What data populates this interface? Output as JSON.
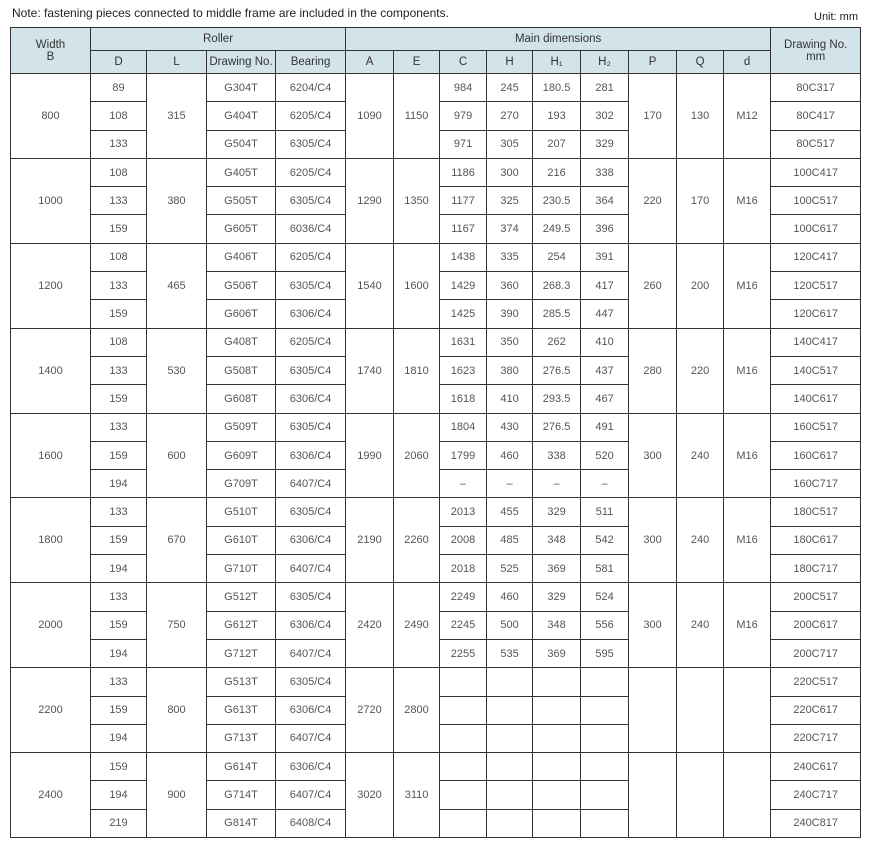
{
  "note": "Note: fastening pieces connected to middle frame are included in the components.",
  "unit": "Unit: mm",
  "headers": {
    "width": "Width",
    "width_sub": "B",
    "roller": "Roller",
    "main_dimensions": "Main dimensions",
    "drawing_no_mm": "Drawing No.",
    "drawing_no_mm_sub": "mm",
    "columns": [
      "D",
      "L",
      "Drawing No.",
      "Bearing",
      "A",
      "E",
      "C",
      "H",
      "H₁",
      "H₂",
      "P",
      "Q",
      "d"
    ]
  },
  "header_color": "#d3e3ea",
  "groups": [
    {
      "width": "800",
      "L": "315",
      "A": "1090",
      "E": "1150",
      "P": "170",
      "Q": "130",
      "d": "M12",
      "rows": [
        {
          "D": "89",
          "drawing_no": "G304T",
          "bearing": "6204/C4",
          "C": "984",
          "H": "245",
          "H1": "180.5",
          "H2": "281",
          "drawing_no_mm": "80C317"
        },
        {
          "D": "108",
          "drawing_no": "G404T",
          "bearing": "6205/C4",
          "C": "979",
          "H": "270",
          "H1": "193",
          "H2": "302",
          "drawing_no_mm": "80C417"
        },
        {
          "D": "133",
          "drawing_no": "G504T",
          "bearing": "6305/C4",
          "C": "971",
          "H": "305",
          "H1": "207",
          "H2": "329",
          "drawing_no_mm": "80C517"
        }
      ]
    },
    {
      "width": "1000",
      "L": "380",
      "A": "1290",
      "E": "1350",
      "P": "220",
      "Q": "170",
      "d": "M16",
      "rows": [
        {
          "D": "108",
          "drawing_no": "G405T",
          "bearing": "6205/C4",
          "C": "1186",
          "H": "300",
          "H1": "216",
          "H2": "338",
          "drawing_no_mm": "100C417"
        },
        {
          "D": "133",
          "drawing_no": "G505T",
          "bearing": "6305/C4",
          "C": "1177",
          "H": "325",
          "H1": "230.5",
          "H2": "364",
          "drawing_no_mm": "100C517"
        },
        {
          "D": "159",
          "drawing_no": "G605T",
          "bearing": "6036/C4",
          "C": "1167",
          "H": "374",
          "H1": "249.5",
          "H2": "396",
          "drawing_no_mm": "100C617"
        }
      ]
    },
    {
      "width": "1200",
      "L": "465",
      "A": "1540",
      "E": "1600",
      "P": "260",
      "Q": "200",
      "d": "M16",
      "rows": [
        {
          "D": "108",
          "drawing_no": "G406T",
          "bearing": "6205/C4",
          "C": "1438",
          "H": "335",
          "H1": "254",
          "H2": "391",
          "drawing_no_mm": "120C417"
        },
        {
          "D": "133",
          "drawing_no": "G506T",
          "bearing": "6305/C4",
          "C": "1429",
          "H": "360",
          "H1": "268.3",
          "H2": "417",
          "drawing_no_mm": "120C517"
        },
        {
          "D": "159",
          "drawing_no": "G606T",
          "bearing": "6306/C4",
          "C": "1425",
          "H": "390",
          "H1": "285.5",
          "H2": "447",
          "drawing_no_mm": "120C617"
        }
      ]
    },
    {
      "width": "1400",
      "L": "530",
      "A": "1740",
      "E": "1810",
      "P": "280",
      "Q": "220",
      "d": "M16",
      "rows": [
        {
          "D": "108",
          "drawing_no": "G408T",
          "bearing": "6205/C4",
          "C": "1631",
          "H": "350",
          "H1": "262",
          "H2": "410",
          "drawing_no_mm": "140C417"
        },
        {
          "D": "133",
          "drawing_no": "G508T",
          "bearing": "6305/C4",
          "C": "1623",
          "H": "380",
          "H1": "276.5",
          "H2": "437",
          "drawing_no_mm": "140C517"
        },
        {
          "D": "159",
          "drawing_no": "G608T",
          "bearing": "6306/C4",
          "C": "1618",
          "H": "410",
          "H1": "293.5",
          "H2": "467",
          "drawing_no_mm": "140C617"
        }
      ]
    },
    {
      "width": "1600",
      "L": "600",
      "A": "1990",
      "E": "2060",
      "P": "300",
      "Q": "240",
      "d": "M16",
      "rows": [
        {
          "D": "133",
          "drawing_no": "G509T",
          "bearing": "6305/C4",
          "C": "1804",
          "H": "430",
          "H1": "276.5",
          "H2": "491",
          "drawing_no_mm": "160C517"
        },
        {
          "D": "159",
          "drawing_no": "G609T",
          "bearing": "6306/C4",
          "C": "1799",
          "H": "460",
          "H1": "338",
          "H2": "520",
          "drawing_no_mm": "160C617"
        },
        {
          "D": "194",
          "drawing_no": "G709T",
          "bearing": "6407/C4",
          "C": "–",
          "H": "–",
          "H1": "–",
          "H2": "–",
          "drawing_no_mm": "160C717"
        }
      ]
    },
    {
      "width": "1800",
      "L": "670",
      "A": "2190",
      "E": "2260",
      "P": "300",
      "Q": "240",
      "d": "M16",
      "rows": [
        {
          "D": "133",
          "drawing_no": "G510T",
          "bearing": "6305/C4",
          "C": "2013",
          "H": "455",
          "H1": "329",
          "H2": "511",
          "drawing_no_mm": "180C517"
        },
        {
          "D": "159",
          "drawing_no": "G610T",
          "bearing": "6306/C4",
          "C": "2008",
          "H": "485",
          "H1": "348",
          "H2": "542",
          "drawing_no_mm": "180C617"
        },
        {
          "D": "194",
          "drawing_no": "G710T",
          "bearing": "6407/C4",
          "C": "2018",
          "H": "525",
          "H1": "369",
          "H2": "581",
          "drawing_no_mm": "180C717"
        }
      ]
    },
    {
      "width": "2000",
      "L": "750",
      "A": "2420",
      "E": "2490",
      "P": "300",
      "Q": "240",
      "d": "M16",
      "rows": [
        {
          "D": "133",
          "drawing_no": "G512T",
          "bearing": "6305/C4",
          "C": "2249",
          "H": "460",
          "H1": "329",
          "H2": "524",
          "drawing_no_mm": "200C517"
        },
        {
          "D": "159",
          "drawing_no": "G612T",
          "bearing": "6306/C4",
          "C": "2245",
          "H": "500",
          "H1": "348",
          "H2": "556",
          "drawing_no_mm": "200C617"
        },
        {
          "D": "194",
          "drawing_no": "G712T",
          "bearing": "6407/C4",
          "C": "2255",
          "H": "535",
          "H1": "369",
          "H2": "595",
          "drawing_no_mm": "200C717"
        }
      ]
    },
    {
      "width": "2200",
      "L": "800",
      "A": "2720",
      "E": "2800",
      "P": "",
      "Q": "",
      "d": "",
      "rows": [
        {
          "D": "133",
          "drawing_no": "G513T",
          "bearing": "6305/C4",
          "C": "",
          "H": "",
          "H1": "",
          "H2": "",
          "drawing_no_mm": "220C517"
        },
        {
          "D": "159",
          "drawing_no": "G613T",
          "bearing": "6306/C4",
          "C": "",
          "H": "",
          "H1": "",
          "H2": "",
          "drawing_no_mm": "220C617"
        },
        {
          "D": "194",
          "drawing_no": "G713T",
          "bearing": "6407/C4",
          "C": "",
          "H": "",
          "H1": "",
          "H2": "",
          "drawing_no_mm": "220C717"
        }
      ]
    },
    {
      "width": "2400",
      "L": "900",
      "A": "3020",
      "E": "3110",
      "P": "",
      "Q": "",
      "d": "",
      "rows": [
        {
          "D": "159",
          "drawing_no": "G614T",
          "bearing": "6306/C4",
          "C": "",
          "H": "",
          "H1": "",
          "H2": "",
          "drawing_no_mm": "240C617"
        },
        {
          "D": "194",
          "drawing_no": "G714T",
          "bearing": "6407/C4",
          "C": "",
          "H": "",
          "H1": "",
          "H2": "",
          "drawing_no_mm": "240C717"
        },
        {
          "D": "219",
          "drawing_no": "G814T",
          "bearing": "6408/C4",
          "C": "",
          "H": "",
          "H1": "",
          "H2": "",
          "drawing_no_mm": "240C817"
        }
      ]
    }
  ]
}
